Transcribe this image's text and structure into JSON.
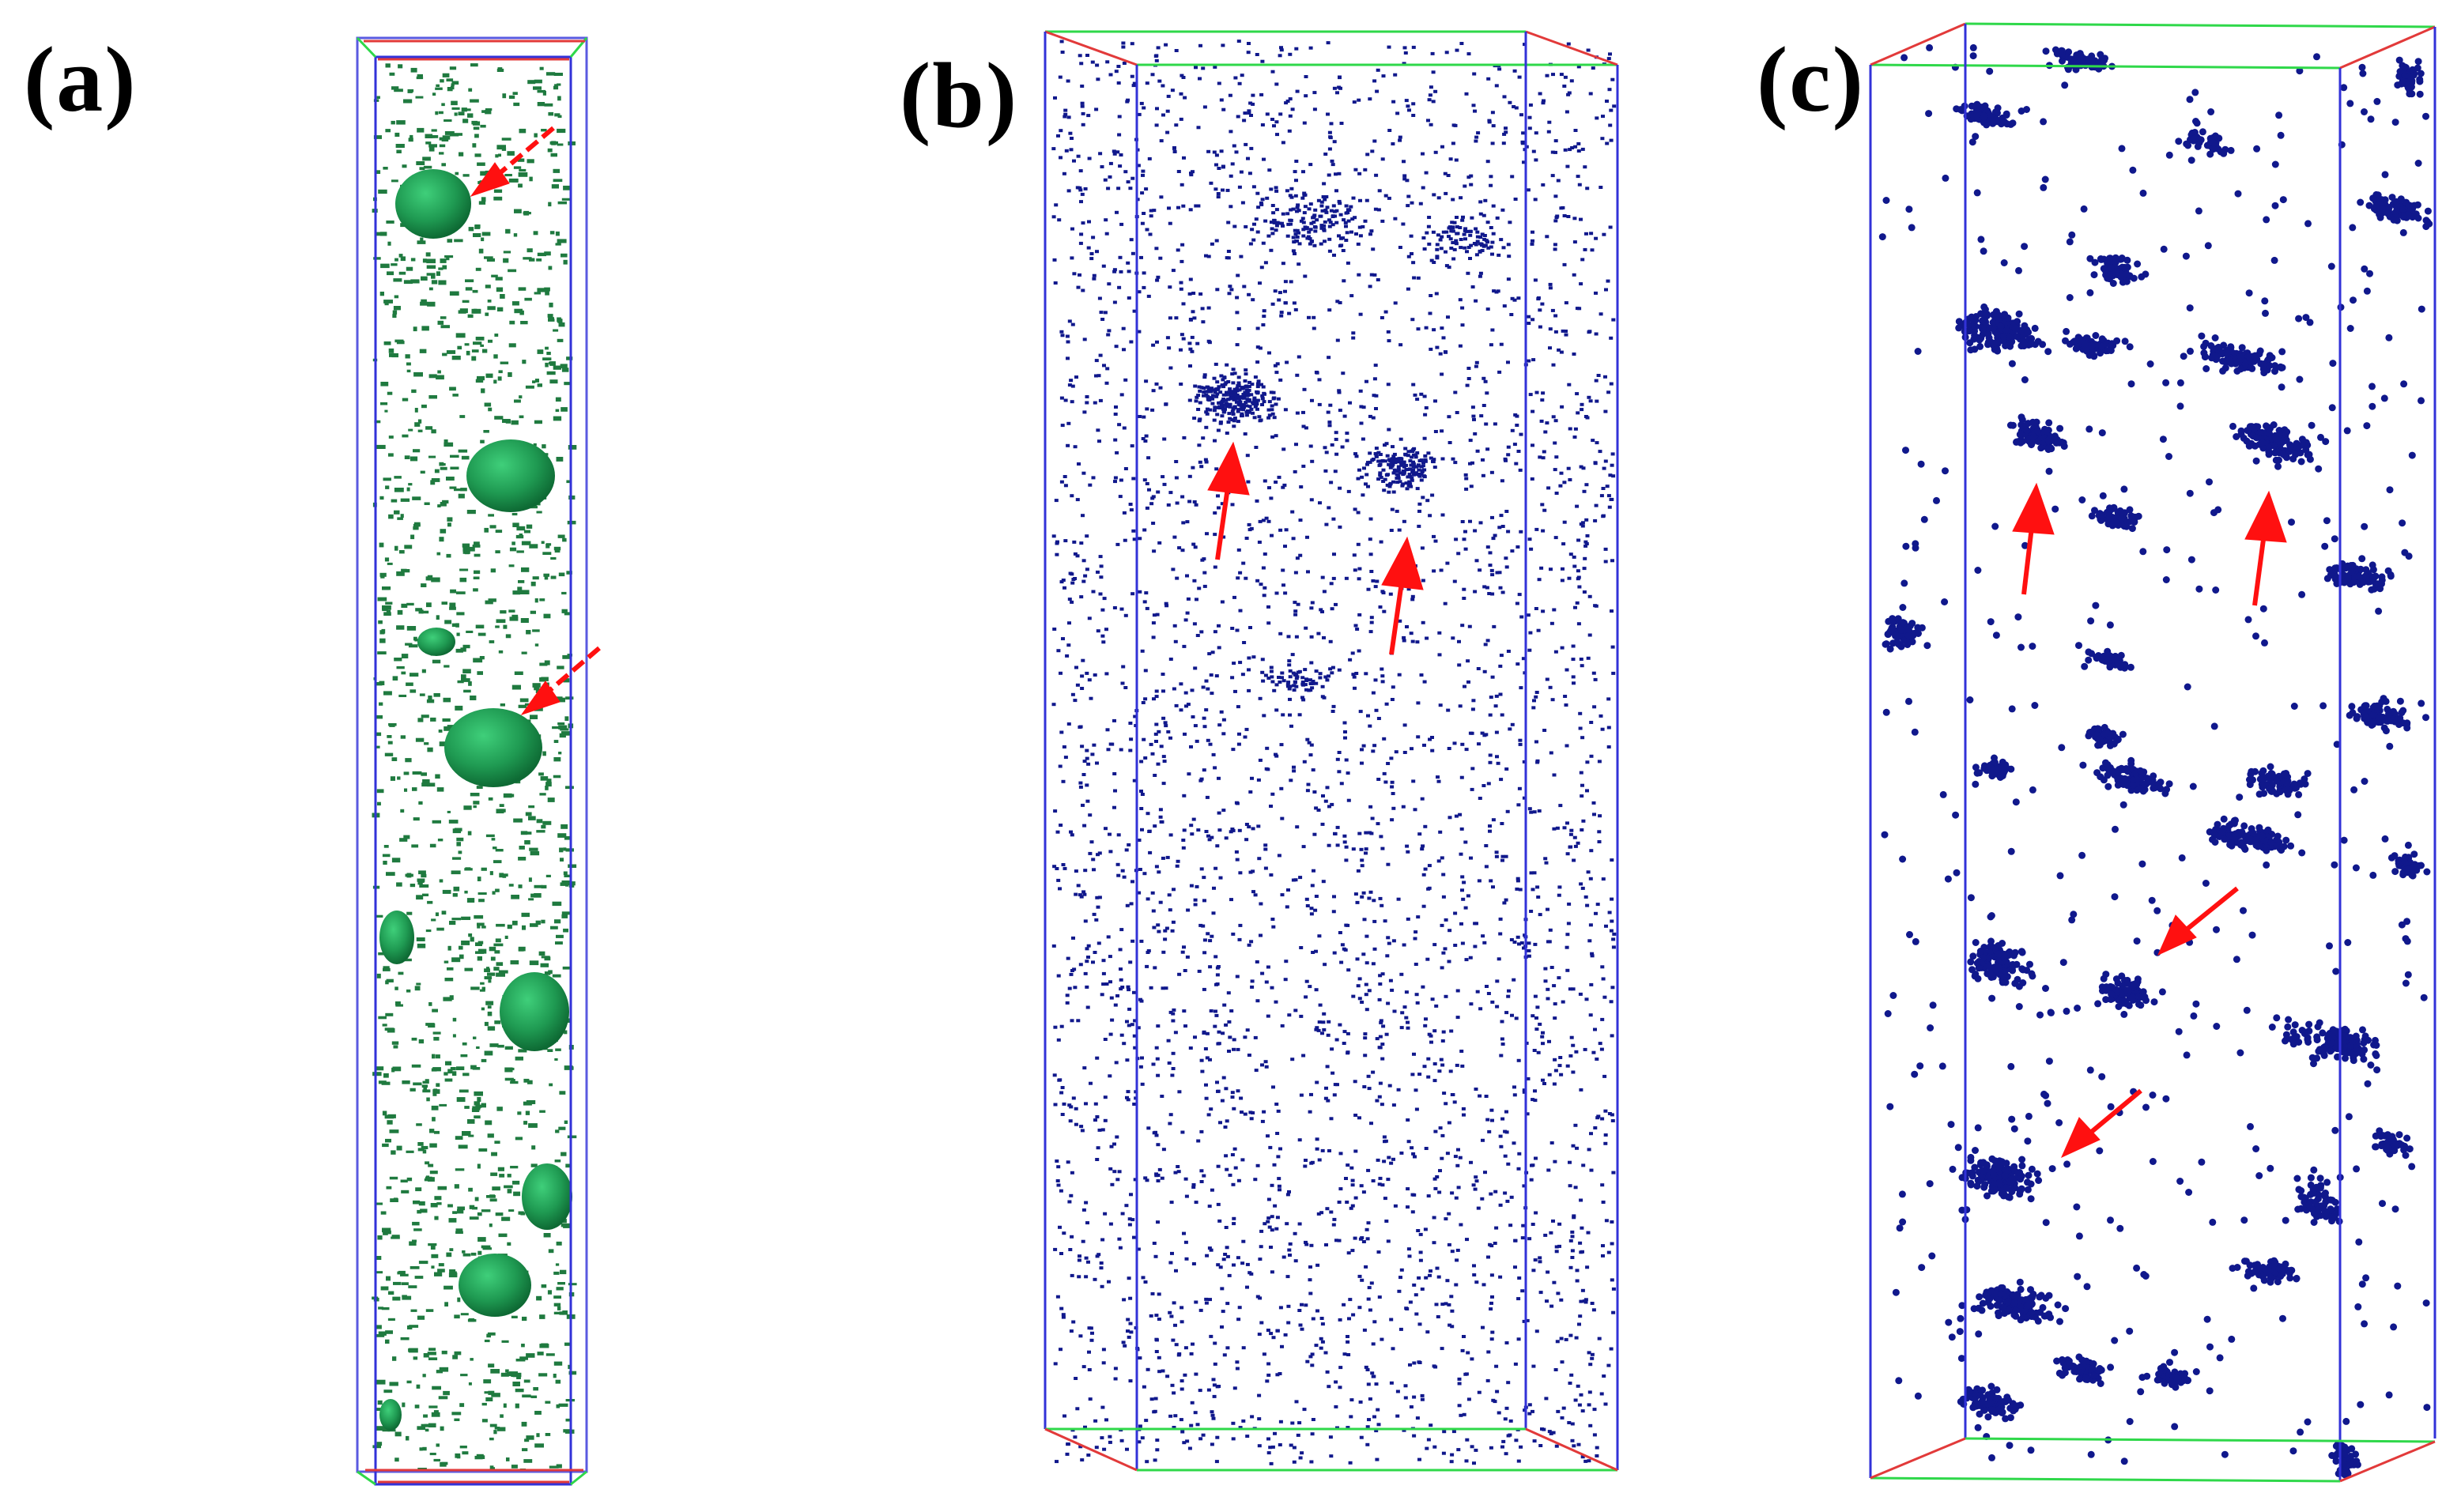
{
  "panels": [
    {
      "id": "a",
      "label": "(a)"
    },
    {
      "id": "b",
      "label": "(b)"
    },
    {
      "id": "c",
      "label": "(c)"
    }
  ],
  "colors": {
    "background": "#ffffff",
    "label": "#000000",
    "green_atoms": "#1f7a3f",
    "green_precipitate": "#22a055",
    "blue_atoms": "#10188c",
    "arrow": "#ff1010",
    "box_blue": "#3232d8",
    "box_green": "#2fd84a",
    "box_red": "#e23a3a"
  }
}
